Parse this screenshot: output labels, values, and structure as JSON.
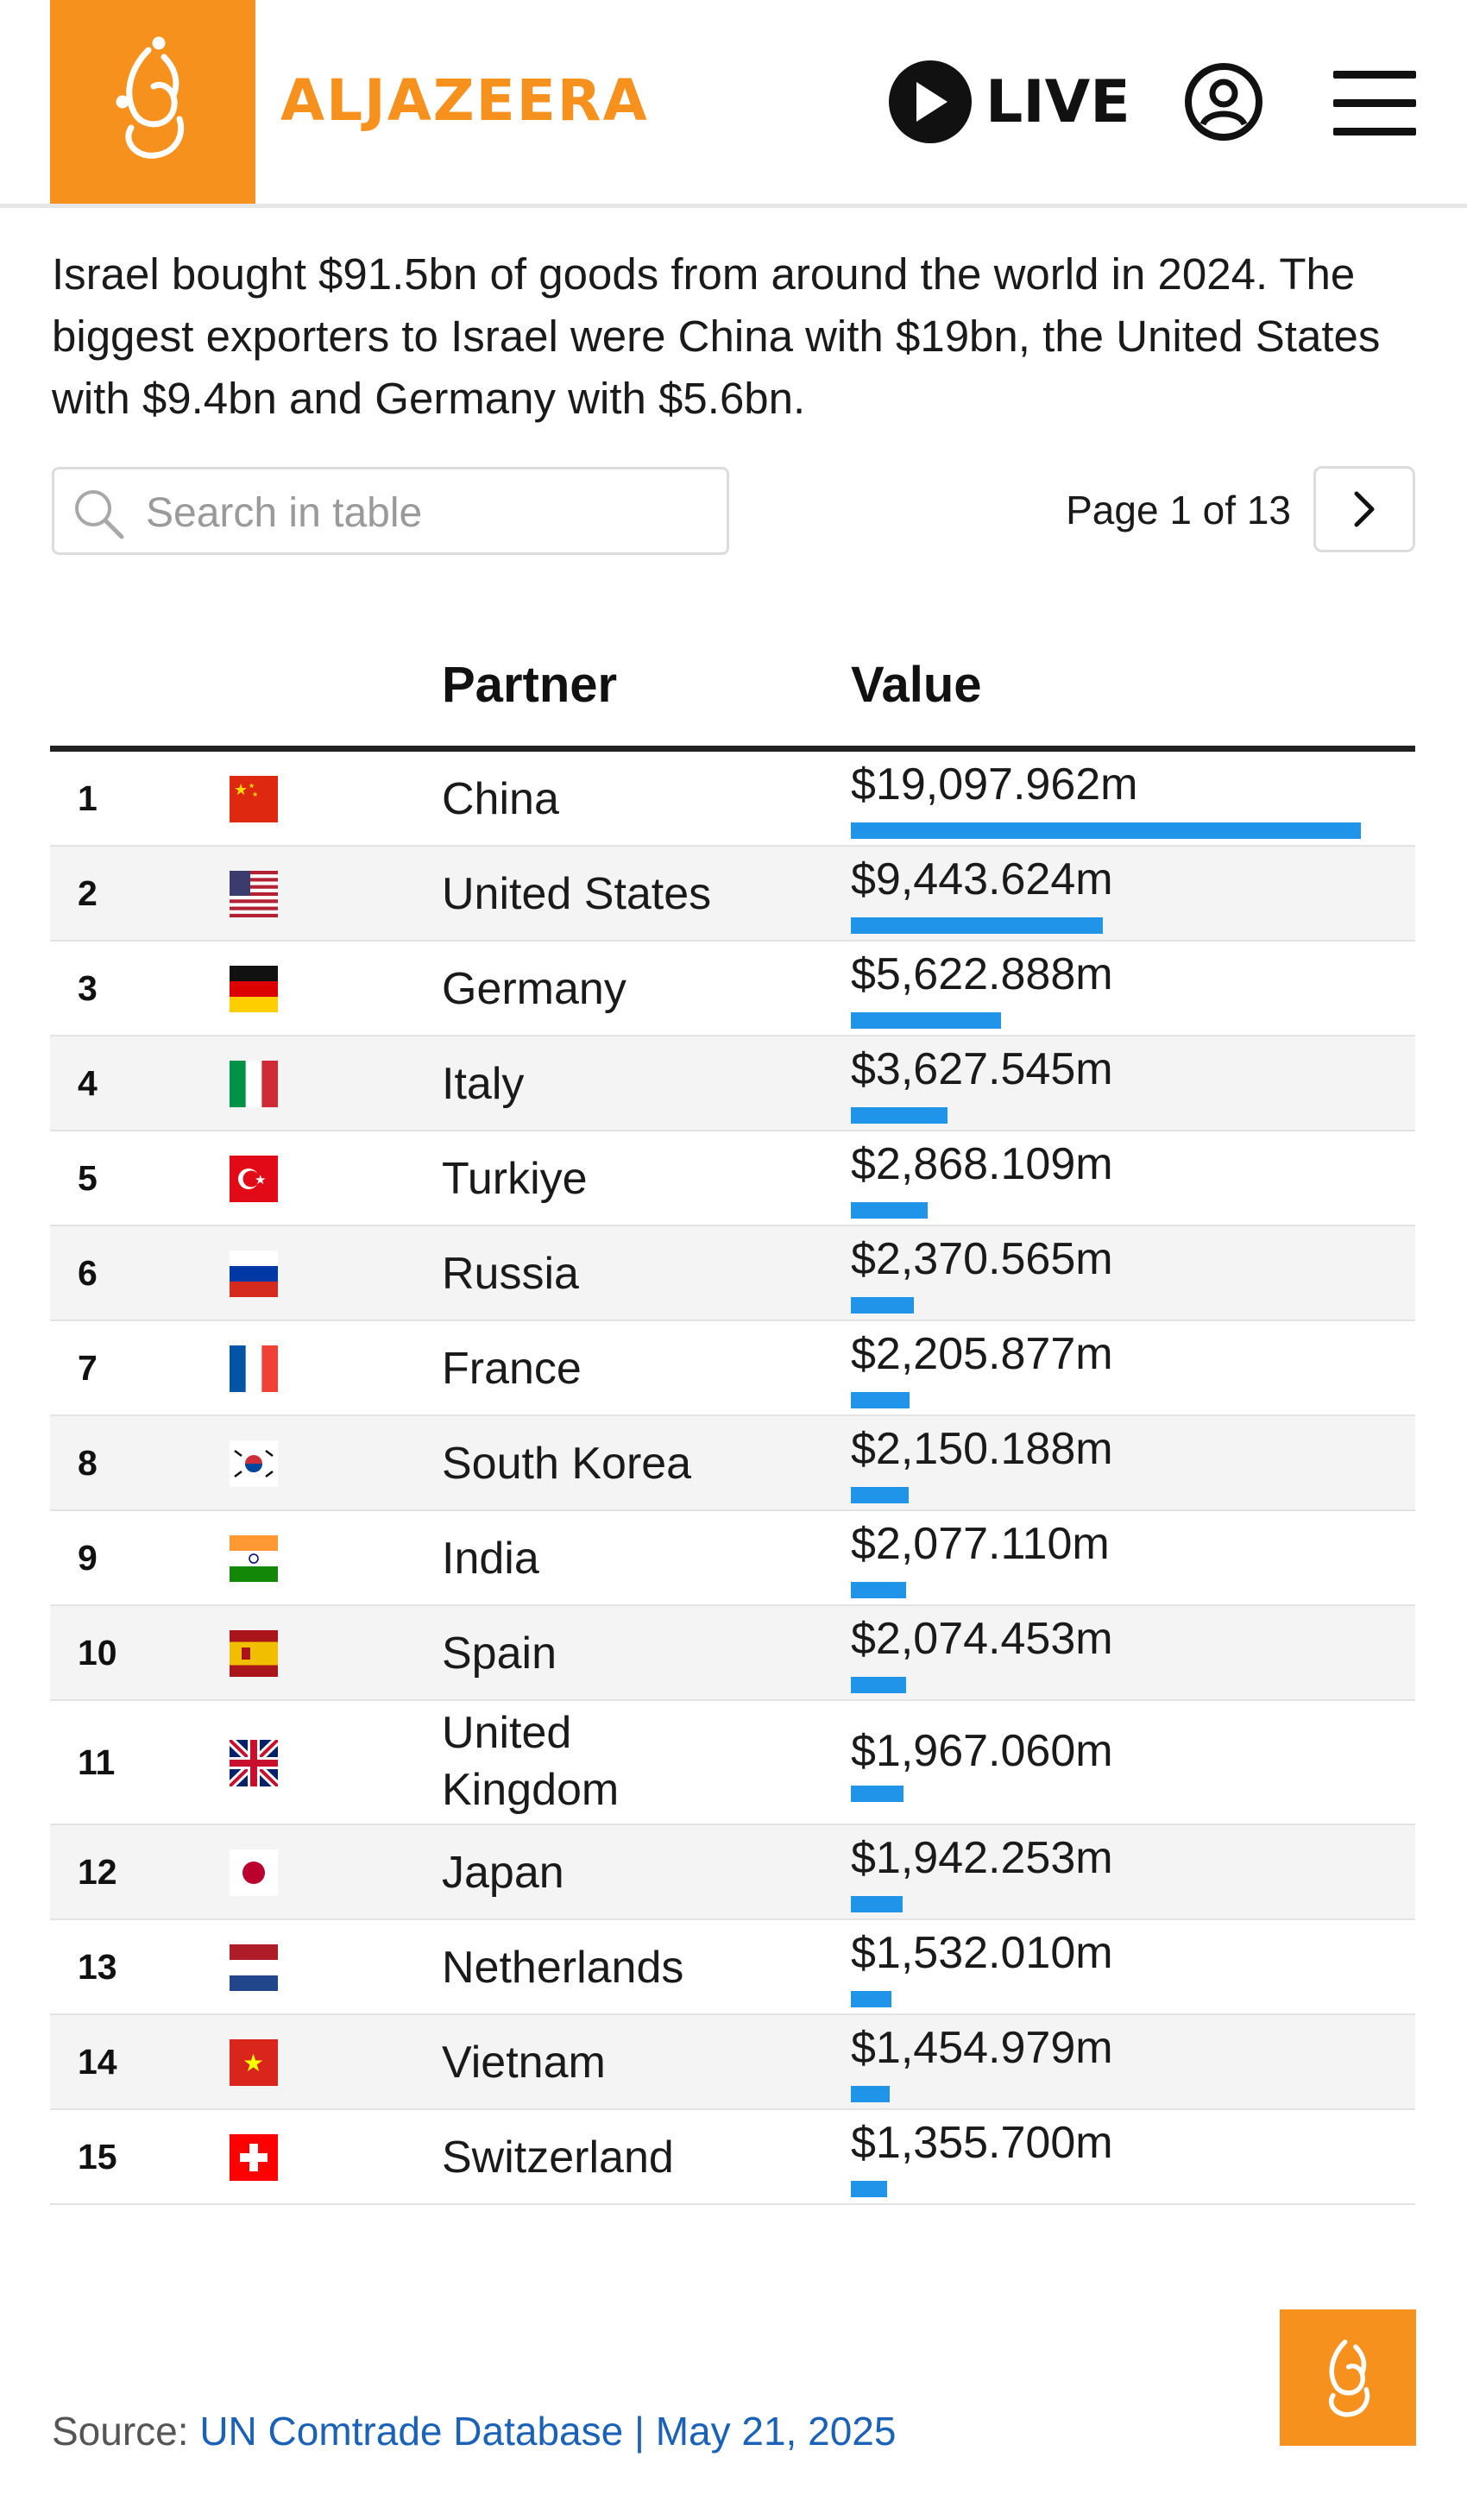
{
  "header": {
    "brand": "ALJAZEERA",
    "live_label": "LIVE",
    "logo_icon": "aljazeera-logo-icon",
    "account_icon": "user-account-icon",
    "menu_icon": "hamburger-menu-icon",
    "accent_color": "#f6911e"
  },
  "intro": "Israel bought $91.5bn of goods from around the world in 2024. The biggest exporters to Israel were China with $19bn, the United States with $9.4bn and Germany with $5.6bn.",
  "search": {
    "placeholder": "Search in table",
    "value": ""
  },
  "pager": {
    "label": "Page 1 of 13"
  },
  "table": {
    "columns": [
      "",
      "",
      "Partner",
      "Value"
    ],
    "bar_color": "#1f94e8",
    "rows": [
      {
        "rank": "1",
        "flag": "china-flag-icon",
        "partner": "China",
        "value": "$19,097.962m",
        "amount": 19097.962
      },
      {
        "rank": "2",
        "flag": "usa-flag-icon",
        "partner": "United States",
        "value": "$9,443.624m",
        "amount": 9443.624
      },
      {
        "rank": "3",
        "flag": "germany-flag-icon",
        "partner": "Germany",
        "value": "$5,622.888m",
        "amount": 5622.888
      },
      {
        "rank": "4",
        "flag": "italy-flag-icon",
        "partner": "Italy",
        "value": "$3,627.545m",
        "amount": 3627.545
      },
      {
        "rank": "5",
        "flag": "turkiye-flag-icon",
        "partner": "Turkiye",
        "value": "$2,868.109m",
        "amount": 2868.109
      },
      {
        "rank": "6",
        "flag": "russia-flag-icon",
        "partner": "Russia",
        "value": "$2,370.565m",
        "amount": 2370.565
      },
      {
        "rank": "7",
        "flag": "france-flag-icon",
        "partner": "France",
        "value": "$2,205.877m",
        "amount": 2205.877
      },
      {
        "rank": "8",
        "flag": "south-korea-flag-icon",
        "partner": "South Korea",
        "value": "$2,150.188m",
        "amount": 2150.188
      },
      {
        "rank": "9",
        "flag": "india-flag-icon",
        "partner": "India",
        "value": "$2,077.110m",
        "amount": 2077.11
      },
      {
        "rank": "10",
        "flag": "spain-flag-icon",
        "partner": "Spain",
        "value": "$2,074.453m",
        "amount": 2074.453
      },
      {
        "rank": "11",
        "flag": "uk-flag-icon",
        "partner": "United Kingdom",
        "value": "$1,967.060m",
        "amount": 1967.06
      },
      {
        "rank": "12",
        "flag": "japan-flag-icon",
        "partner": "Japan",
        "value": "$1,942.253m",
        "amount": 1942.253
      },
      {
        "rank": "13",
        "flag": "netherlands-flag-icon",
        "partner": "Netherlands",
        "value": "$1,532.010m",
        "amount": 1532.01
      },
      {
        "rank": "14",
        "flag": "vietnam-flag-icon",
        "partner": "Vietnam",
        "value": "$1,454.979m",
        "amount": 1454.979
      },
      {
        "rank": "15",
        "flag": "switzerland-flag-icon",
        "partner": "Switzerland",
        "value": "$1,355.700m",
        "amount": 1355.7
      }
    ]
  },
  "footer": {
    "source_label": "Source:",
    "source_link": "UN Comtrade Database | May 21, 2025"
  }
}
